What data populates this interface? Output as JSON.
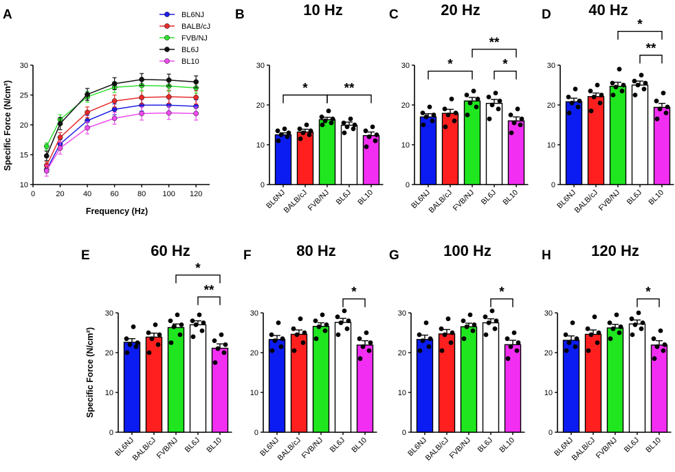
{
  "line_panel": {
    "letter": "A",
    "title": "",
    "xlabel": "Frequency (Hz)",
    "ylabel": "Specific Force (N/cm²)",
    "x_ticks": [
      0,
      20,
      40,
      60,
      80,
      100,
      120
    ],
    "y_ticks": [
      10,
      15,
      20,
      25,
      30
    ],
    "legend": [
      {
        "name": "BL6NJ",
        "color": "#1f1fe6"
      },
      {
        "name": "BALB/cJ",
        "color": "#e82a2a"
      },
      {
        "name": "FVB/NJ",
        "color": "#2ee02e"
      },
      {
        "name": "BL6J",
        "color": "#111111"
      },
      {
        "name": "BL10",
        "color": "#ee4bee"
      }
    ]
  },
  "bar_panels": [
    {
      "letter": "B",
      "title": "10 Hz"
    },
    {
      "letter": "C",
      "title": "20 Hz"
    },
    {
      "letter": "D",
      "title": "40 Hz"
    },
    {
      "letter": "E",
      "title": "60 Hz"
    },
    {
      "letter": "F",
      "title": "80 Hz"
    },
    {
      "letter": "G",
      "title": "100 Hz"
    },
    {
      "letter": "H",
      "title": "120 Hz"
    }
  ],
  "shared_ylabel": "Specific Force (N/cm²)",
  "bar_colors": [
    "#0b1cf2",
    "#ff1f1f",
    "#1fe61f",
    "#ffffff",
    "#f22ef2"
  ],
  "chart_data": [
    {
      "type": "line",
      "title": "",
      "xlabel": "Frequency (Hz)",
      "ylabel": "Specific Force (N/cm²)",
      "xlim": [
        0,
        130
      ],
      "ylim": [
        10,
        30
      ],
      "x": [
        10,
        20,
        40,
        60,
        80,
        100,
        120
      ],
      "series": [
        {
          "name": "BL6NJ",
          "color": "#1f1fe6",
          "values": [
            12.5,
            16.8,
            20.7,
            22.6,
            23.3,
            23.3,
            23.1
          ],
          "errors": [
            0.5,
            0.7,
            0.9,
            0.9,
            1.0,
            1.1,
            1.1
          ]
        },
        {
          "name": "BALB/cJ",
          "color": "#e82a2a",
          "values": [
            13.2,
            17.9,
            22.1,
            24.0,
            24.6,
            24.7,
            24.6
          ],
          "errors": [
            0.6,
            0.8,
            0.9,
            1.0,
            1.1,
            1.1,
            1.1
          ]
        },
        {
          "name": "FVB/NJ",
          "color": "#2ee02e",
          "values": [
            16.4,
            20.9,
            24.7,
            26.3,
            26.6,
            26.5,
            26.2
          ],
          "errors": [
            0.6,
            0.8,
            0.9,
            0.9,
            0.9,
            0.9,
            0.9
          ]
        },
        {
          "name": "BL6J",
          "color": "#111111",
          "values": [
            14.8,
            20.2,
            25.1,
            26.9,
            27.6,
            27.5,
            27.2
          ],
          "errors": [
            0.8,
            1.0,
            1.0,
            1.0,
            1.0,
            1.0,
            1.0
          ]
        },
        {
          "name": "BL10",
          "color": "#ee4bee",
          "values": [
            12.3,
            16.1,
            19.5,
            21.1,
            21.9,
            22.0,
            21.9
          ],
          "errors": [
            0.9,
            1.0,
            1.0,
            1.0,
            1.1,
            1.1,
            1.1
          ]
        }
      ]
    },
    {
      "type": "bar",
      "title": "10 Hz",
      "categories": [
        "BL6NJ",
        "BALB/cJ",
        "FVB/NJ",
        "BL6J",
        "BL10"
      ],
      "values": [
        12.5,
        13.2,
        16.3,
        14.9,
        12.3
      ],
      "errors": [
        0.5,
        0.7,
        0.6,
        0.8,
        0.9
      ],
      "points": [
        [
          11,
          12,
          12.5,
          13,
          13.5,
          14
        ],
        [
          11.5,
          12.5,
          13,
          13.5,
          14,
          15
        ],
        [
          15,
          15.5,
          16,
          16.5,
          17,
          18.5
        ],
        [
          13,
          14,
          14.5,
          15,
          15.5,
          16.5
        ],
        [
          9.5,
          11,
          12,
          12.5,
          13.5,
          14.5
        ]
      ],
      "ylim": [
        0,
        30
      ],
      "yticks": [
        0,
        10,
        20,
        30
      ],
      "significance": [
        {
          "from": 0,
          "to": 2,
          "y": 22.5,
          "label": "*"
        },
        {
          "from": 2,
          "to": 4,
          "y": 22.5,
          "label": "**"
        }
      ]
    },
    {
      "type": "bar",
      "title": "20 Hz",
      "categories": [
        "BL6NJ",
        "BALB/cJ",
        "FVB/NJ",
        "BL6J",
        "BL10"
      ],
      "values": [
        17.0,
        17.9,
        21.0,
        20.4,
        16.0
      ],
      "errors": [
        0.8,
        1.0,
        0.9,
        1.0,
        1.0
      ],
      "points": [
        [
          15,
          16,
          17,
          17.5,
          18,
          19.5
        ],
        [
          14.5,
          16,
          17.5,
          18,
          19,
          21.5
        ],
        [
          17.5,
          19.5,
          20.5,
          21.5,
          22.5,
          23.5
        ],
        [
          16.5,
          19,
          20,
          21,
          22,
          23
        ],
        [
          13,
          15,
          15.5,
          16.5,
          17.5,
          19
        ]
      ],
      "ylim": [
        0,
        30
      ],
      "yticks": [
        0,
        10,
        20,
        30
      ],
      "significance": [
        {
          "from": 0,
          "to": 2,
          "y": 28.5,
          "label": "*"
        },
        {
          "from": 3,
          "to": 4,
          "y": 28.5,
          "label": "*"
        },
        {
          "from": 2,
          "to": 4,
          "y": 34,
          "label": "**"
        }
      ]
    },
    {
      "type": "bar",
      "title": "40 Hz",
      "categories": [
        "BL6NJ",
        "BALB/cJ",
        "FVB/NJ",
        "BL6J",
        "BL10"
      ],
      "values": [
        20.8,
        22.1,
        24.7,
        25.0,
        19.4
      ],
      "errors": [
        0.9,
        0.9,
        1.0,
        1.0,
        1.0
      ],
      "points": [
        [
          18,
          19.5,
          20.5,
          21,
          22,
          24
        ],
        [
          18.5,
          20.5,
          22,
          22.5,
          23.5,
          25
        ],
        [
          22.5,
          23.5,
          24.5,
          25,
          25.5,
          29
        ],
        [
          22.5,
          24,
          25,
          25.5,
          26,
          27.5
        ],
        [
          16.5,
          18,
          19,
          19.5,
          21,
          23
        ]
      ],
      "ylim": [
        0,
        30
      ],
      "yticks": [
        0,
        10,
        20,
        30
      ],
      "significance": [
        {
          "from": 3,
          "to": 4,
          "y": 32.5,
          "label": "**"
        },
        {
          "from": 2,
          "to": 4,
          "y": 38.5,
          "label": "*"
        }
      ]
    },
    {
      "type": "bar",
      "title": "60 Hz",
      "categories": [
        "BL6NJ",
        "BALB/cJ",
        "FVB/NJ",
        "BL6J",
        "BL10"
      ],
      "values": [
        22.6,
        23.9,
        26.3,
        27.0,
        21.1
      ],
      "errors": [
        0.9,
        1.0,
        0.9,
        1.0,
        1.1
      ],
      "points": [
        [
          20,
          21.5,
          22,
          22.5,
          23.5,
          26.5
        ],
        [
          20,
          22,
          23.5,
          24.5,
          25,
          27
        ],
        [
          22.5,
          24.5,
          26.5,
          27,
          28,
          29.5
        ],
        [
          24,
          25.5,
          27,
          27.5,
          28,
          29.5
        ],
        [
          17.5,
          20,
          21,
          22,
          23,
          24.5
        ]
      ],
      "ylim": [
        0,
        30
      ],
      "yticks": [
        0,
        10,
        20,
        30
      ],
      "significance": [
        {
          "from": 3,
          "to": 4,
          "y": 34,
          "label": "**"
        },
        {
          "from": 2,
          "to": 4,
          "y": 39.5,
          "label": "*"
        }
      ]
    },
    {
      "type": "bar",
      "title": "80 Hz",
      "categories": [
        "BL6NJ",
        "BALB/cJ",
        "FVB/NJ",
        "BL6J",
        "BL10"
      ],
      "values": [
        23.3,
        24.6,
        26.6,
        27.6,
        21.9
      ],
      "errors": [
        1.0,
        1.1,
        0.9,
        1.0,
        1.1
      ],
      "points": [
        [
          20.5,
          21.5,
          23,
          23.5,
          24.5,
          27.5
        ],
        [
          20.5,
          22.5,
          24.5,
          25,
          26,
          28.5
        ],
        [
          23.5,
          25.5,
          26.5,
          27,
          28,
          29.5
        ],
        [
          24.5,
          26,
          27.5,
          28,
          29,
          30.5
        ],
        [
          18.5,
          20.5,
          21.5,
          22.5,
          23.5,
          25
        ]
      ],
      "ylim": [
        0,
        30
      ],
      "yticks": [
        0,
        10,
        20,
        30
      ],
      "significance": [
        {
          "from": 3,
          "to": 4,
          "y": 33.5,
          "label": "*"
        }
      ]
    },
    {
      "type": "bar",
      "title": "100 Hz",
      "categories": [
        "BL6NJ",
        "BALB/cJ",
        "FVB/NJ",
        "BL6J",
        "BL10"
      ],
      "values": [
        23.3,
        24.7,
        26.5,
        27.5,
        22.0
      ],
      "errors": [
        1.1,
        1.1,
        0.9,
        1.0,
        1.1
      ],
      "points": [
        [
          20.5,
          21.5,
          23,
          23.5,
          24.5,
          27.5
        ],
        [
          20.5,
          22.5,
          24.5,
          25,
          26,
          28.5
        ],
        [
          23.5,
          25.5,
          26.5,
          27,
          28,
          29.5
        ],
        [
          24.5,
          26,
          27.5,
          28,
          29,
          30.5
        ],
        [
          18.5,
          20.5,
          21.5,
          22.5,
          23.5,
          25
        ]
      ],
      "ylim": [
        0,
        30
      ],
      "yticks": [
        0,
        10,
        20,
        30
      ],
      "significance": [
        {
          "from": 3,
          "to": 4,
          "y": 33.5,
          "label": "*"
        }
      ]
    },
    {
      "type": "bar",
      "title": "120 Hz",
      "categories": [
        "BL6NJ",
        "BALB/cJ",
        "FVB/NJ",
        "BL6J",
        "BL10"
      ],
      "values": [
        23.1,
        24.6,
        26.2,
        27.2,
        21.9
      ],
      "errors": [
        1.1,
        1.1,
        0.9,
        1.0,
        1.1
      ],
      "points": [
        [
          20.5,
          21.5,
          22.5,
          23.5,
          24.5,
          27.5
        ],
        [
          20.5,
          22.5,
          24.5,
          25,
          26,
          29
        ],
        [
          23.5,
          25,
          26,
          26.5,
          27.5,
          29.5
        ],
        [
          24.5,
          26,
          27,
          27.5,
          28.5,
          30
        ],
        [
          18.5,
          20.5,
          21.5,
          22,
          23.5,
          25.5
        ]
      ],
      "ylim": [
        0,
        30
      ],
      "yticks": [
        0,
        10,
        20,
        30
      ],
      "significance": [
        {
          "from": 3,
          "to": 4,
          "y": 33.5,
          "label": "*"
        }
      ]
    }
  ]
}
